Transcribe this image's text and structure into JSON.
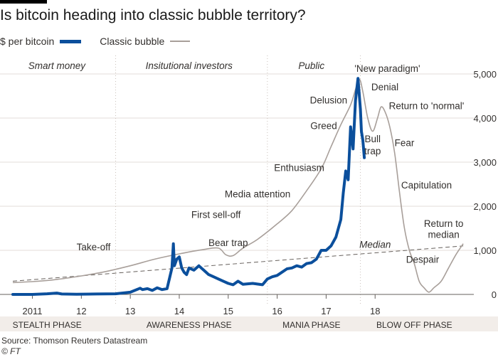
{
  "header": {
    "title": "Is bitcoin heading into classic bubble territory?"
  },
  "legend": {
    "bitcoin": "$ per bitcoin",
    "bubble": "Classic bubble"
  },
  "colors": {
    "bitcoin": "#0b4f9c",
    "bubble": "#a89f9a",
    "grid": "#e3ddd8",
    "text": "#33302e",
    "phase_band": "#f2ede9"
  },
  "footer": {
    "source": "Source: Thomson Reuters Datastream",
    "copyright": "© FT"
  },
  "chart_data": {
    "type": "line",
    "title": "Is bitcoin heading into classic bubble territory?",
    "ylabel": "$ per bitcoin",
    "ylim": [
      0,
      5000
    ],
    "y_ticks": [
      0,
      1000,
      2000,
      3000,
      4000,
      5000
    ],
    "y_tick_labels": [
      "0",
      "1,000",
      "2,000",
      "3,000",
      "4,000",
      "5,000"
    ],
    "xlim": [
      2010.6,
      2019.9
    ],
    "x_ticks": [
      2011,
      2012,
      2013,
      2014,
      2015,
      2016,
      2017,
      2018
    ],
    "x_tick_labels": [
      "2011",
      "12",
      "13",
      "14",
      "15",
      "16",
      "17",
      "18"
    ],
    "grid": true,
    "audience_labels": [
      {
        "text": "Smart money",
        "x": 2011.5
      },
      {
        "text": "Insitutional investors",
        "x": 2014.2
      },
      {
        "text": "Public",
        "x": 2016.7
      }
    ],
    "phases": [
      {
        "label": "STEALTH PHASE",
        "x": 2011.3
      },
      {
        "label": "AWARENESS PHASE",
        "x": 2014.2
      },
      {
        "label": "MANIA PHASE",
        "x": 2016.7
      },
      {
        "label": "BLOW OFF PHASE",
        "x": 2018.8
      }
    ],
    "phase_boundaries": [
      2012.7,
      2015.8,
      2017.7
    ],
    "series": [
      {
        "name": "$ per bitcoin",
        "x": [
          2010.6,
          2011.0,
          2011.3,
          2011.5,
          2011.6,
          2011.9,
          2012.3,
          2012.7,
          2013.0,
          2013.2,
          2013.25,
          2013.35,
          2013.45,
          2013.55,
          2013.65,
          2013.75,
          2013.85,
          2013.88,
          2013.9,
          2013.95,
          2014.0,
          2014.05,
          2014.1,
          2014.15,
          2014.2,
          2014.3,
          2014.4,
          2014.45,
          2014.5,
          2014.6,
          2014.7,
          2014.8,
          2014.9,
          2015.0,
          2015.1,
          2015.2,
          2015.3,
          2015.5,
          2015.7,
          2015.8,
          2015.9,
          2016.0,
          2016.2,
          2016.3,
          2016.4,
          2016.5,
          2016.6,
          2016.7,
          2016.8,
          2016.9,
          2017.0,
          2017.1,
          2017.2,
          2017.3,
          2017.35,
          2017.4,
          2017.45,
          2017.5,
          2017.55,
          2017.6,
          2017.65,
          2017.7,
          2017.72,
          2017.75,
          2017.78
        ],
        "y": [
          0,
          0,
          15,
          30,
          10,
          5,
          10,
          15,
          50,
          140,
          110,
          130,
          90,
          150,
          110,
          130,
          600,
          1150,
          650,
          800,
          850,
          600,
          500,
          450,
          600,
          550,
          650,
          600,
          550,
          450,
          400,
          350,
          300,
          250,
          220,
          300,
          230,
          250,
          220,
          350,
          400,
          430,
          580,
          600,
          650,
          620,
          700,
          720,
          800,
          1000,
          1000,
          1100,
          1300,
          1700,
          2300,
          2800,
          2600,
          3800,
          3300,
          4400,
          4900,
          4200,
          3700,
          3500,
          3100
        ]
      },
      {
        "name": "Classic bubble",
        "x": [
          2010.6,
          2011.0,
          2011.5,
          2012.0,
          2012.5,
          2013.0,
          2013.5,
          2014.0,
          2014.5,
          2014.8,
          2014.95,
          2015.1,
          2015.3,
          2015.6,
          2016.0,
          2016.3,
          2016.6,
          2016.9,
          2017.1,
          2017.3,
          2017.5,
          2017.6,
          2017.68,
          2017.75,
          2017.85,
          2017.95,
          2018.05,
          2018.12,
          2018.2,
          2018.3,
          2018.4,
          2018.5,
          2018.6,
          2018.7,
          2018.8,
          2018.9,
          2019.0,
          2019.1,
          2019.2,
          2019.35,
          2019.5,
          2019.65,
          2019.8
        ],
        "y": [
          270,
          290,
          340,
          420,
          520,
          650,
          800,
          920,
          1020,
          1050,
          900,
          880,
          1050,
          1250,
          1600,
          1900,
          2350,
          2850,
          3350,
          3850,
          4300,
          4650,
          4880,
          4600,
          4000,
          3700,
          4000,
          4250,
          4150,
          3800,
          3200,
          2300,
          1500,
          1000,
          700,
          300,
          150,
          50,
          150,
          300,
          600,
          900,
          1150
        ]
      },
      {
        "name": "Median",
        "x": [
          2010.6,
          2019.8
        ],
        "y": [
          300,
          1100
        ]
      }
    ],
    "annotations": [
      {
        "text": "Take-off",
        "x": 2012.25,
        "y": 1000
      },
      {
        "text": "First sell-off",
        "x": 2014.75,
        "y": 1730
      },
      {
        "text": "Bear trap",
        "x": 2015.0,
        "y": 1100
      },
      {
        "text": "Media attention",
        "x": 2015.6,
        "y": 2200
      },
      {
        "text": "Enthusiasm",
        "x": 2016.45,
        "y": 2800
      },
      {
        "text": "Greed",
        "x": 2016.95,
        "y": 3750
      },
      {
        "text": "Delusion",
        "x": 2017.05,
        "y": 4330
      },
      {
        "text": "'New paradigm'",
        "x": 2018.25,
        "y": 5050
      },
      {
        "text": "Denial",
        "x": 2018.2,
        "y": 4630
      },
      {
        "text": "Bull",
        "x": 2017.95,
        "y": 3450
      },
      {
        "text": "trap",
        "x": 2017.95,
        "y": 3180
      },
      {
        "text": "Return to 'normal'",
        "x": 2019.05,
        "y": 4200
      },
      {
        "text": "Fear",
        "x": 2018.6,
        "y": 3360
      },
      {
        "text": "Capitulation",
        "x": 2019.05,
        "y": 2400
      },
      {
        "text": "Median",
        "x": 2018.0,
        "y": 1060
      },
      {
        "text": "Return to",
        "x": 2019.4,
        "y": 1530
      },
      {
        "text": "median",
        "x": 2019.4,
        "y": 1280
      },
      {
        "text": "Despair",
        "x": 2018.97,
        "y": 720
      }
    ]
  }
}
